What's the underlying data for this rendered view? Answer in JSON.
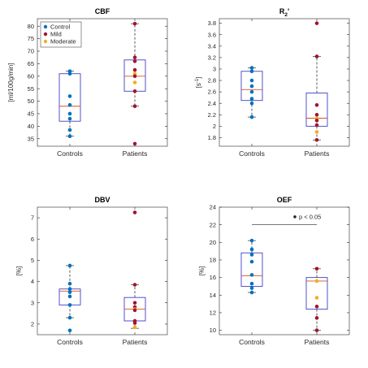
{
  "chart_data": [
    {
      "type": "box",
      "title": "CBF",
      "ylabel": "[ml/100g/min]",
      "ylim": [
        32,
        83
      ],
      "yticks": [
        35,
        40,
        45,
        50,
        55,
        60,
        65,
        70,
        75,
        80
      ],
      "categories": [
        "Controls",
        "Patients"
      ],
      "boxes": [
        {
          "q1": 42,
          "median": 48,
          "q3": 61,
          "whisker_low": 36,
          "whisker_high": 62
        },
        {
          "q1": 54,
          "median": 60,
          "q3": 66.5,
          "whisker_low": 48,
          "whisker_high": 81
        }
      ],
      "points": [
        {
          "x": 1,
          "y": 62,
          "group": "Control"
        },
        {
          "x": 1,
          "y": 61,
          "group": "Control"
        },
        {
          "x": 1,
          "y": 52,
          "group": "Control"
        },
        {
          "x": 1,
          "y": 48.5,
          "group": "Control"
        },
        {
          "x": 1,
          "y": 45,
          "group": "Control"
        },
        {
          "x": 1,
          "y": 43,
          "group": "Control"
        },
        {
          "x": 1,
          "y": 38.5,
          "group": "Control"
        },
        {
          "x": 1,
          "y": 36,
          "group": "Control"
        },
        {
          "x": 2,
          "y": 81,
          "group": "Mild"
        },
        {
          "x": 2,
          "y": 67.5,
          "group": "Mild"
        },
        {
          "x": 2,
          "y": 66,
          "group": "Mild"
        },
        {
          "x": 2,
          "y": 62.5,
          "group": "Mild"
        },
        {
          "x": 2,
          "y": 61,
          "group": "Moderate"
        },
        {
          "x": 2,
          "y": 60,
          "group": "Mild"
        },
        {
          "x": 2,
          "y": 57.5,
          "group": "Moderate"
        },
        {
          "x": 2,
          "y": 54,
          "group": "Mild"
        },
        {
          "x": 2,
          "y": 48,
          "group": "Mild"
        },
        {
          "x": 2,
          "y": 33,
          "group": "Mild"
        }
      ],
      "legend": {
        "position": "top-left",
        "entries": [
          {
            "label": "Control",
            "color": "#0072BD"
          },
          {
            "label": "Mild",
            "color": "#A2142F"
          },
          {
            "label": "Moderate",
            "color": "#EDB120"
          }
        ]
      }
    },
    {
      "type": "box",
      "title": "R",
      "title_sub": "2",
      "title_prime": "'",
      "ylabel": "[s",
      "ylabel_sup": "-1",
      "ylabel_close": "]",
      "ylim": [
        1.65,
        3.88
      ],
      "yticks": [
        1.8,
        2.0,
        2.2,
        2.4,
        2.6,
        2.8,
        3.0,
        3.2,
        3.4,
        3.6,
        3.8
      ],
      "ytick_labels": [
        "1.8",
        "2",
        "2.2",
        "2.4",
        "2.6",
        "2.8",
        "3",
        "3.2",
        "3.4",
        "3.6",
        "3.8"
      ],
      "categories": [
        "Controls",
        "Patients"
      ],
      "boxes": [
        {
          "q1": 2.45,
          "median": 2.64,
          "q3": 2.96,
          "whisker_low": 2.16,
          "whisker_high": 3.02
        },
        {
          "q1": 2.0,
          "median": 2.14,
          "q3": 2.58,
          "whisker_low": 1.76,
          "whisker_high": 3.22
        }
      ],
      "points": [
        {
          "x": 1,
          "y": 3.02,
          "group": "Control"
        },
        {
          "x": 1,
          "y": 2.96,
          "group": "Control"
        },
        {
          "x": 1,
          "y": 2.8,
          "group": "Control"
        },
        {
          "x": 1,
          "y": 2.7,
          "group": "Control"
        },
        {
          "x": 1,
          "y": 2.6,
          "group": "Control"
        },
        {
          "x": 1,
          "y": 2.48,
          "group": "Control"
        },
        {
          "x": 1,
          "y": 2.4,
          "group": "Control"
        },
        {
          "x": 1,
          "y": 2.16,
          "group": "Control"
        },
        {
          "x": 2,
          "y": 3.8,
          "group": "Mild"
        },
        {
          "x": 2,
          "y": 3.22,
          "group": "Mild"
        },
        {
          "x": 2,
          "y": 2.37,
          "group": "Mild"
        },
        {
          "x": 2,
          "y": 2.2,
          "group": "Mild"
        },
        {
          "x": 2,
          "y": 2.14,
          "group": "Moderate"
        },
        {
          "x": 2,
          "y": 2.1,
          "group": "Mild"
        },
        {
          "x": 2,
          "y": 2.02,
          "group": "Mild"
        },
        {
          "x": 2,
          "y": 1.9,
          "group": "Moderate"
        },
        {
          "x": 2,
          "y": 1.76,
          "group": "Mild"
        }
      ]
    },
    {
      "type": "box",
      "title": "DBV",
      "ylabel": "[%]",
      "ylim": [
        1.5,
        7.5
      ],
      "yticks": [
        2,
        3,
        4,
        5,
        6,
        7
      ],
      "categories": [
        "Controls",
        "Patients"
      ],
      "boxes": [
        {
          "q1": 2.9,
          "median": 3.55,
          "q3": 3.65,
          "whisker_low": 2.3,
          "whisker_high": 4.75
        },
        {
          "q1": 2.15,
          "median": 2.7,
          "q3": 3.25,
          "whisker_low": 1.8,
          "whisker_high": 3.85
        }
      ],
      "points": [
        {
          "x": 1,
          "y": 4.75,
          "group": "Control"
        },
        {
          "x": 1,
          "y": 3.9,
          "group": "Control"
        },
        {
          "x": 1,
          "y": 3.65,
          "group": "Control"
        },
        {
          "x": 1,
          "y": 3.5,
          "group": "Control"
        },
        {
          "x": 1,
          "y": 3.3,
          "group": "Control"
        },
        {
          "x": 1,
          "y": 2.9,
          "group": "Control"
        },
        {
          "x": 1,
          "y": 2.3,
          "group": "Control"
        },
        {
          "x": 1,
          "y": 1.7,
          "group": "Control"
        },
        {
          "x": 2,
          "y": 7.25,
          "group": "Mild"
        },
        {
          "x": 2,
          "y": 3.85,
          "group": "Mild"
        },
        {
          "x": 2,
          "y": 3.0,
          "group": "Mild"
        },
        {
          "x": 2,
          "y": 2.8,
          "group": "Mild"
        },
        {
          "x": 2,
          "y": 2.7,
          "group": "Moderate"
        },
        {
          "x": 2,
          "y": 2.65,
          "group": "Mild"
        },
        {
          "x": 2,
          "y": 2.15,
          "group": "Mild"
        },
        {
          "x": 2,
          "y": 2.05,
          "group": "Mild"
        },
        {
          "x": 2,
          "y": 1.85,
          "group": "Moderate"
        }
      ]
    },
    {
      "type": "box",
      "title": "OEF",
      "ylabel": "[%]",
      "ylim": [
        9.5,
        24
      ],
      "yticks": [
        10,
        12,
        14,
        16,
        18,
        20,
        22,
        24
      ],
      "categories": [
        "Controls",
        "Patients"
      ],
      "boxes": [
        {
          "q1": 15.0,
          "median": 16.2,
          "q3": 18.8,
          "whisker_low": 14.3,
          "whisker_high": 20.2
        },
        {
          "q1": 12.4,
          "median": 15.6,
          "q3": 16.0,
          "whisker_low": 10.0,
          "whisker_high": 17.0
        }
      ],
      "points": [
        {
          "x": 1,
          "y": 20.2,
          "group": "Control"
        },
        {
          "x": 1,
          "y": 19.2,
          "group": "Control"
        },
        {
          "x": 1,
          "y": 18.6,
          "group": "Control"
        },
        {
          "x": 1,
          "y": 17.8,
          "group": "Control"
        },
        {
          "x": 1,
          "y": 16.3,
          "group": "Control"
        },
        {
          "x": 1,
          "y": 15.3,
          "group": "Control"
        },
        {
          "x": 1,
          "y": 14.8,
          "group": "Control"
        },
        {
          "x": 1,
          "y": 14.3,
          "group": "Control"
        },
        {
          "x": 2,
          "y": 17.0,
          "group": "Mild"
        },
        {
          "x": 2,
          "y": 15.6,
          "group": "Moderate"
        },
        {
          "x": 2,
          "y": 13.7,
          "group": "Moderate"
        },
        {
          "x": 2,
          "y": 12.7,
          "group": "Mild"
        },
        {
          "x": 2,
          "y": 11.4,
          "group": "Mild"
        },
        {
          "x": 2,
          "y": 10.0,
          "group": "Mild"
        }
      ],
      "significance": {
        "from": 1,
        "to": 2,
        "y": 22,
        "label": "p < 0.05"
      }
    }
  ],
  "styles": {
    "box_color": "#4040C8",
    "median_color": "#D95319",
    "whisker_color": "#333333",
    "group_colors": {
      "Control": "#0072BD",
      "Mild": "#A2142F",
      "Moderate": "#EDB120"
    }
  }
}
